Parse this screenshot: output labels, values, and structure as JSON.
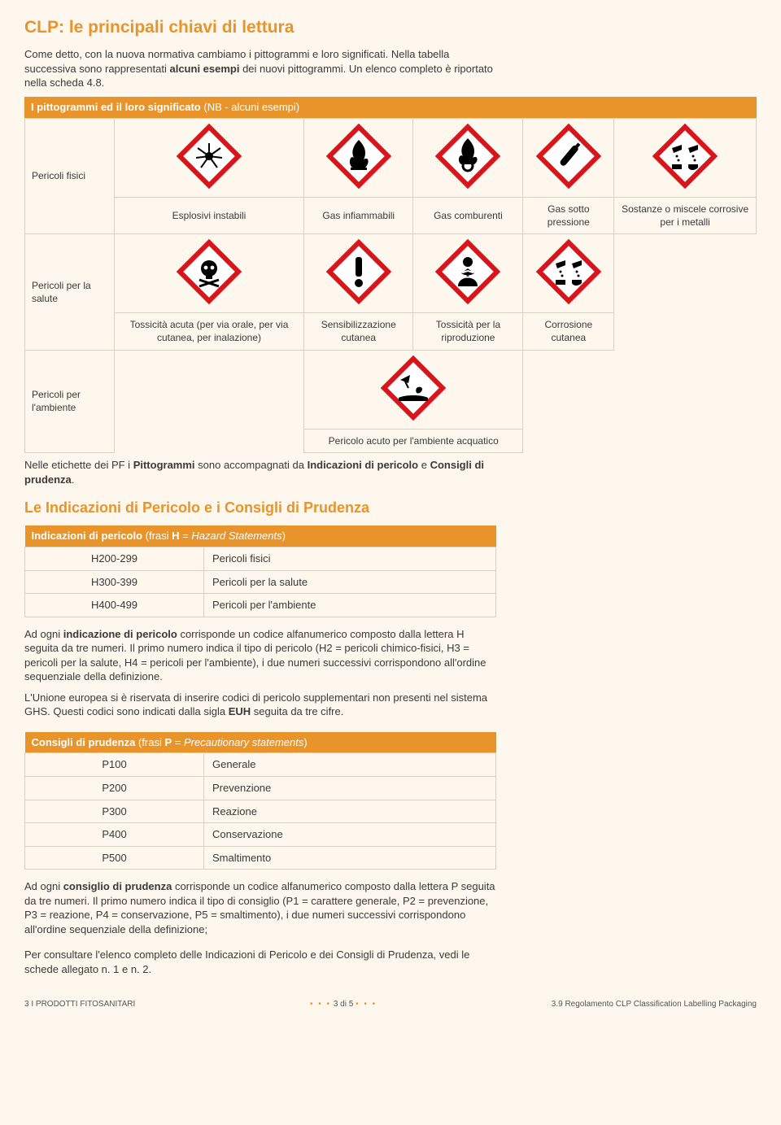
{
  "colors": {
    "accent": "#e8942a",
    "background": "#fdf7ed",
    "text": "#3a3a3a",
    "border": "#d9d2c4",
    "picto_border": "#d8151b",
    "picto_fill": "#ffffff",
    "picto_symbol": "#000000"
  },
  "title": "CLP: le principali chiavi di lettura",
  "intro": {
    "p1a": "Come detto, con la nuova normativa cambiamo i pittogrammi e loro significati. Nella tabella successiva sono rappresentati ",
    "p1b": "alcuni esempi",
    "p1c": " dei nuovi pittogrammi. Un elenco completo è riportato nella scheda 4.8."
  },
  "picto_header": {
    "a": "I pittogrammi ed il loro significato ",
    "b": "(NB - alcuni esempi)"
  },
  "picto_rows": [
    {
      "label": "Pericoli fisici",
      "items": [
        {
          "caption": "Esplosivi instabili",
          "icon": "explosion"
        },
        {
          "caption": "Gas infiammabili",
          "icon": "flame"
        },
        {
          "caption": "Gas comburenti",
          "icon": "flame-o"
        },
        {
          "caption": "Gas sotto pressione",
          "icon": "cylinder"
        },
        {
          "caption": "Sostanze o miscele corrosive per i metalli",
          "icon": "corrosion"
        }
      ]
    },
    {
      "label": "Pericoli per la salute",
      "items": [
        {
          "caption": "Tossicità acuta (per via orale, per via cutanea, per inalazione)",
          "icon": "skull"
        },
        {
          "caption": "Sensibilizzazione cutanea",
          "icon": "exclaim"
        },
        {
          "caption": "Tossicità per la riproduzione",
          "icon": "silhouette"
        },
        {
          "caption": "Corrosione cutanea",
          "icon": "corrosion"
        }
      ]
    },
    {
      "label": "Pericoli per l'ambiente",
      "items": [
        {
          "caption": "Pericolo acuto per l'ambiente acquatico",
          "icon": "environment"
        }
      ]
    }
  ],
  "mid_para": {
    "a": "Nelle etichette dei PF i ",
    "b": "Pittogrammi",
    "c": " sono accompagnati da ",
    "d": "Indicazioni di pericolo",
    "e": " e ",
    "f": "Consigli di prudenza",
    "g": "."
  },
  "subtitle": "Le Indicazioni di Pericolo e i Consigli di Prudenza",
  "hazard_header": {
    "a": "Indicazioni di pericolo ",
    "b": "(frasi ",
    "c": "H",
    "d": " = ",
    "e": "Hazard Statements",
    "f": ")"
  },
  "hazard_rows": [
    {
      "code": "H200-299",
      "desc": "Pericoli fisici"
    },
    {
      "code": "H300-399",
      "desc": "Pericoli per la salute"
    },
    {
      "code": "H400-499",
      "desc": "Pericoli per l'ambiente"
    }
  ],
  "hazard_para": {
    "a": "Ad ogni ",
    "b": "indicazione di pericolo",
    "c": " corrisponde un codice alfanumerico composto dalla lettera H seguita da tre numeri. Il primo numero indica il tipo di pericolo (H2 = pericoli chimico-fisici, H3 = pericoli per la salute, H4 = pericoli per l'ambiente), i due numeri successivi corrispondono all'ordine sequenziale della definizione.",
    "d": "L'Unione europea si è riservata di inserire codici di pericolo supplementari non presenti nel sistema GHS. Questi codici sono indicati dalla sigla ",
    "e": "EUH",
    "f": " seguita da tre cifre."
  },
  "prec_header": {
    "a": "Consigli di prudenza ",
    "b": "(frasi ",
    "c": "P",
    "d": " = ",
    "e": "Precautionary statements",
    "f": ")"
  },
  "prec_rows": [
    {
      "code": "P100",
      "desc": "Generale"
    },
    {
      "code": "P200",
      "desc": "Prevenzione"
    },
    {
      "code": "P300",
      "desc": "Reazione"
    },
    {
      "code": "P400",
      "desc": "Conservazione"
    },
    {
      "code": "P500",
      "desc": "Smaltimento"
    }
  ],
  "prec_para": {
    "a": "Ad ogni ",
    "b": "consiglio di prudenza",
    "c": " corrisponde un codice alfanumerico composto dalla lettera P seguita da tre numeri. Il primo numero indica il tipo di consiglio (P1 = carattere generale, P2 = prevenzione, P3 = reazione, P4 = conservazione, P5 = smaltimento), i due numeri successivi corrispondono all'ordine sequenziale della definizione;"
  },
  "final_para": "Per consultare l'elenco completo delle Indicazioni di Pericolo e dei Consigli di Prudenza, vedi le schede allegato n. 1 e n. 2.",
  "footer": {
    "left": "3 I PRODOTTI FITOSANITARI",
    "center": "3 di 5",
    "right": "3.9 Regolamento CLP Classification Labelling Packaging"
  }
}
